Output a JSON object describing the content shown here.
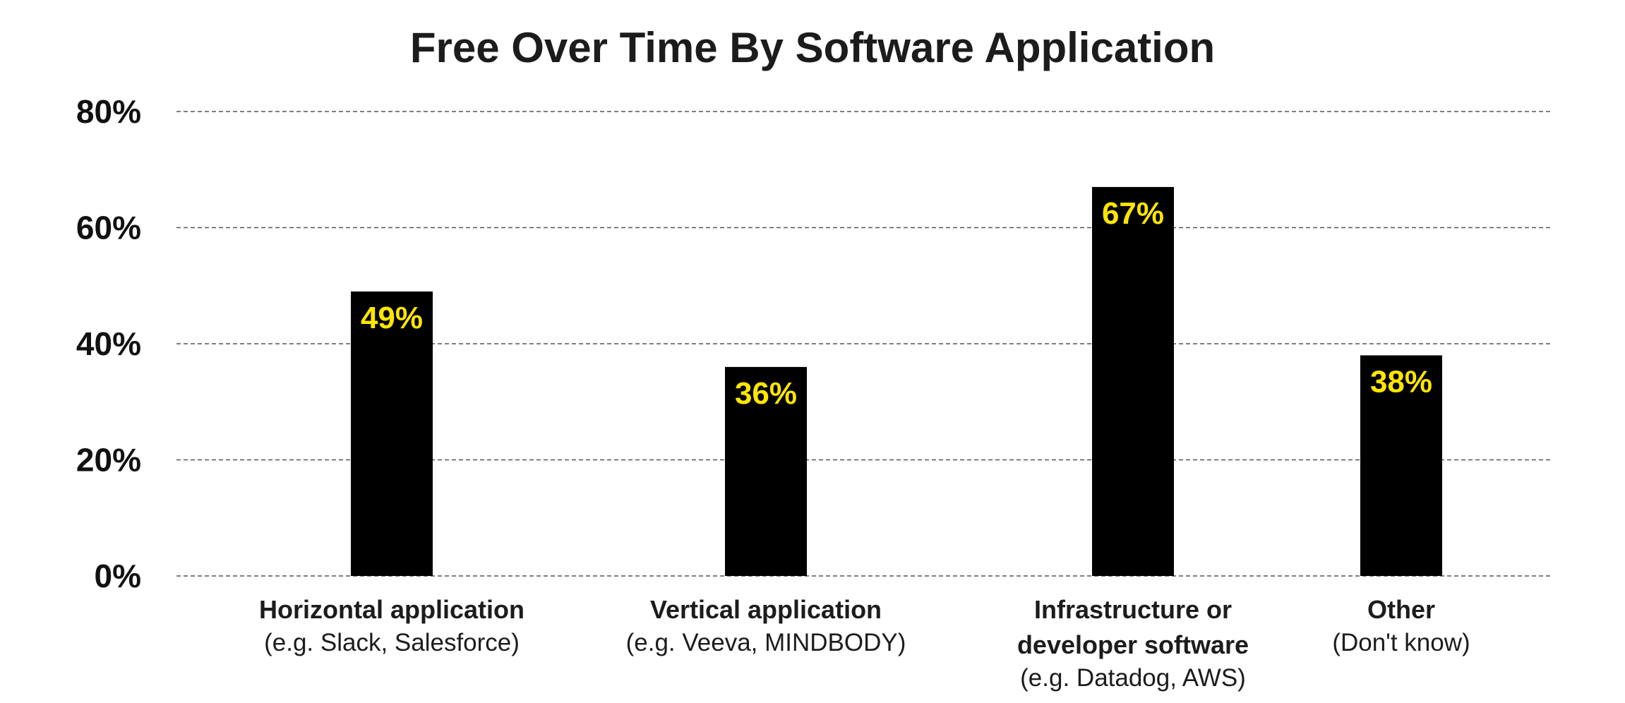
{
  "chart_data": {
    "type": "bar",
    "title": "Free Over Time By Software Application",
    "xlabel": "",
    "ylabel": "",
    "ylim": [
      0,
      80
    ],
    "y_ticks": [
      "0%",
      "20%",
      "40%",
      "60%",
      "80%"
    ],
    "grid": true,
    "legend": "none",
    "bar_color": "#000000",
    "label_color": "#FFE600",
    "categories": [
      {
        "main": [
          "Horizontal application"
        ],
        "sub": "(e.g. Slack, Salesforce)"
      },
      {
        "main": [
          "Vertical application"
        ],
        "sub": "(e.g. Veeva, MINDBODY)"
      },
      {
        "main": [
          "Infrastructure or",
          "developer software"
        ],
        "sub": "(e.g. Datadog, AWS)"
      },
      {
        "main": [
          "Other"
        ],
        "sub": "(Don't know)"
      }
    ],
    "values": [
      49,
      36,
      67,
      38
    ],
    "value_labels": [
      "49%",
      "36%",
      "67%",
      "38%"
    ]
  }
}
